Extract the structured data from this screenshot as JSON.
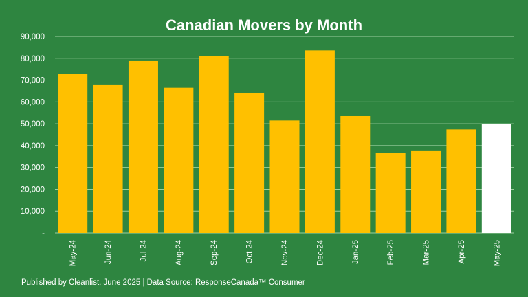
{
  "chart_data": {
    "type": "bar",
    "title": "Canadian Movers by Month",
    "categories": [
      "May-24",
      "Jun-24",
      "Jul-24",
      "Aug-24",
      "Sep-24",
      "Oct-24",
      "Nov-24",
      "Dec-24",
      "Jan-25",
      "Feb-25",
      "Mar-25",
      "Apr-25",
      "May-25"
    ],
    "values": [
      73000,
      68000,
      79000,
      66500,
      81000,
      64200,
      51500,
      83600,
      53500,
      36700,
      37800,
      47400,
      49800
    ],
    "ylim": [
      0,
      90000
    ],
    "yticks": [
      0,
      10000,
      20000,
      30000,
      40000,
      50000,
      60000,
      70000,
      80000,
      90000
    ],
    "ytick_labels": [
      "-",
      "10,000",
      "20,000",
      "30,000",
      "40,000",
      "50,000",
      "60,000",
      "70,000",
      "80,000",
      "90,000"
    ],
    "grid": true,
    "colors": {
      "background": "#2e8540",
      "bar": "#ffc000",
      "highlight_bar": "#ffffff",
      "gridline": "#9ccf9f",
      "text": "#ffffff"
    },
    "highlight_index": 12
  },
  "footer": "Published by Cleanlist, June 2025 | Data Source: ResponseCanada™ Consumer"
}
